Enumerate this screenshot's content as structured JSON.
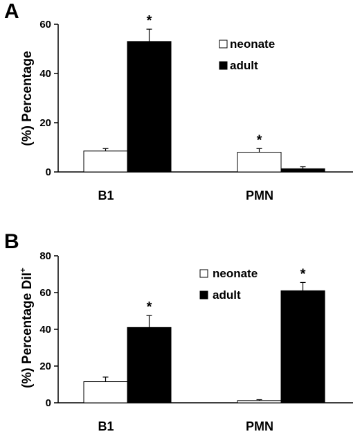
{
  "chart_data": [
    {
      "panel": "A",
      "type": "bar",
      "categories": [
        "B1",
        "PMN"
      ],
      "series": [
        {
          "name": "neonate",
          "color": "#ffffff",
          "values": [
            8.5,
            8.0
          ],
          "errors": [
            1.0,
            1.5
          ],
          "significant": [
            false,
            true
          ]
        },
        {
          "name": "adult",
          "color": "#000000",
          "values": [
            53.0,
            1.3
          ],
          "errors": [
            5.0,
            0.8
          ],
          "significant": [
            true,
            false
          ]
        }
      ],
      "ylabel": "(%) Percentage",
      "ylabel_superscript": "",
      "ylim": [
        0,
        60
      ],
      "yticks": [
        0,
        20,
        40,
        60
      ],
      "grid": false,
      "legend": "top-right",
      "annotation_mark": "*"
    },
    {
      "panel": "B",
      "type": "bar",
      "categories": [
        "B1",
        "PMN"
      ],
      "series": [
        {
          "name": "neonate",
          "color": "#ffffff",
          "values": [
            11.5,
            1.2
          ],
          "errors": [
            2.5,
            0.5
          ],
          "significant": [
            false,
            false
          ]
        },
        {
          "name": "adult",
          "color": "#000000",
          "values": [
            41.0,
            61.0
          ],
          "errors": [
            6.5,
            4.5
          ],
          "significant": [
            true,
            true
          ]
        }
      ],
      "ylabel": "(%) Percentage DiI",
      "ylabel_superscript": "+",
      "ylim": [
        0,
        80
      ],
      "yticks": [
        0,
        20,
        40,
        60,
        80
      ],
      "grid": false,
      "legend": "top-right",
      "annotation_mark": "*"
    }
  ]
}
